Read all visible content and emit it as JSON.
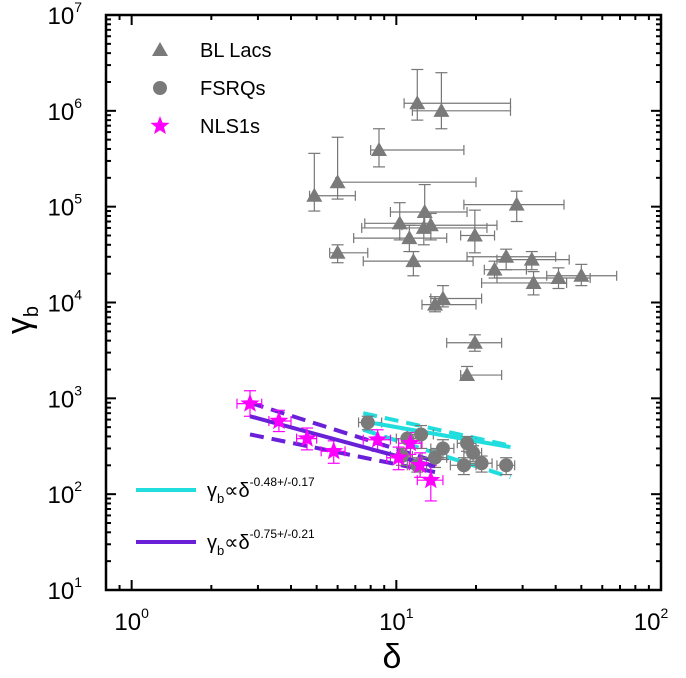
{
  "chart_data": {
    "type": "scatter",
    "title": "",
    "xlabel": "δ",
    "ylabel_main": "γ",
    "ylabel_sub": "b",
    "xscale": "log",
    "yscale": "log",
    "xlim": [
      0.8,
      100
    ],
    "ylim": [
      10,
      10000000
    ],
    "x_ticks": [
      {
        "base": "10",
        "exp": "0",
        "value": 1
      },
      {
        "base": "10",
        "exp": "1",
        "value": 10
      },
      {
        "base": "10",
        "exp": "2",
        "value": 100
      }
    ],
    "y_ticks": [
      {
        "base": "10",
        "exp": "1",
        "value": 10
      },
      {
        "base": "10",
        "exp": "2",
        "value": 100
      },
      {
        "base": "10",
        "exp": "3",
        "value": 1000
      },
      {
        "base": "10",
        "exp": "4",
        "value": 10000
      },
      {
        "base": "10",
        "exp": "5",
        "value": 100000
      },
      {
        "base": "10",
        "exp": "6",
        "value": 1000000
      },
      {
        "base": "10",
        "exp": "7",
        "value": 10000000
      }
    ],
    "legend_position": "top-left",
    "series": [
      {
        "name": "BL Lacs",
        "marker": "triangle",
        "color": "#7a7a7a",
        "points": [
          {
            "x": 12.0,
            "y": 1200000,
            "xlo": 10.7,
            "xhi": 27,
            "ylo": 800000,
            "yhi": 2700000
          },
          {
            "x": 14.8,
            "y": 1000000,
            "xlo": 11.5,
            "xhi": 27,
            "ylo": 650000,
            "yhi": 2500000
          },
          {
            "x": 8.6,
            "y": 390000,
            "xlo": 8.0,
            "xhi": 18,
            "ylo": 260000,
            "yhi": 650000
          },
          {
            "x": 4.9,
            "y": 130000,
            "xlo": 4.7,
            "xhi": 7.0,
            "ylo": 90000,
            "yhi": 360000
          },
          {
            "x": 6.0,
            "y": 180000,
            "xlo": 5.9,
            "xhi": 20,
            "ylo": 120000,
            "yhi": 530000
          },
          {
            "x": 28.5,
            "y": 105000,
            "xlo": 18,
            "xhi": 43,
            "ylo": 70000,
            "yhi": 145000
          },
          {
            "x": 12.8,
            "y": 88000,
            "xlo": 9.5,
            "xhi": 18.5,
            "ylo": 60000,
            "yhi": 170000
          },
          {
            "x": 10.3,
            "y": 67000,
            "xlo": 7.6,
            "xhi": 13.4,
            "ylo": 45000,
            "yhi": 110000
          },
          {
            "x": 13.5,
            "y": 64000,
            "xlo": 10.5,
            "xhi": 24,
            "ylo": 45000,
            "yhi": 85000
          },
          {
            "x": 12.7,
            "y": 60000,
            "xlo": 7.4,
            "xhi": 22,
            "ylo": 40000,
            "yhi": 78000
          },
          {
            "x": 11.2,
            "y": 47000,
            "xlo": 6.9,
            "xhi": 15.5,
            "ylo": 34000,
            "yhi": 64000
          },
          {
            "x": 19.8,
            "y": 50000,
            "xlo": 17.5,
            "xhi": 23.5,
            "ylo": 33000,
            "yhi": 92000
          },
          {
            "x": 6.0,
            "y": 33000,
            "xlo": 5.6,
            "xhi": 7.8,
            "ylo": 26000,
            "yhi": 40000
          },
          {
            "x": 11.6,
            "y": 27000,
            "xlo": 7.5,
            "xhi": 19.5,
            "ylo": 19000,
            "yhi": 34000
          },
          {
            "x": 26.0,
            "y": 30000,
            "xlo": 18.5,
            "xhi": 40,
            "ylo": 22000,
            "yhi": 36000
          },
          {
            "x": 23.5,
            "y": 22000,
            "xlo": 21.5,
            "xhi": 31,
            "ylo": 18000,
            "yhi": 27000
          },
          {
            "x": 32.5,
            "y": 28000,
            "xlo": 24,
            "xhi": 45,
            "ylo": 22000,
            "yhi": 34000
          },
          {
            "x": 33.0,
            "y": 16000,
            "xlo": 21,
            "xhi": 44,
            "ylo": 12000,
            "yhi": 21000
          },
          {
            "x": 41.0,
            "y": 18000,
            "xlo": 24,
            "xhi": 54,
            "ylo": 14000,
            "yhi": 23000
          },
          {
            "x": 50.0,
            "y": 19000,
            "xlo": 37,
            "xhi": 68,
            "ylo": 15000,
            "yhi": 25000
          },
          {
            "x": 15.0,
            "y": 11000,
            "xlo": 13.5,
            "xhi": 21,
            "ylo": 9000,
            "yhi": 15000
          },
          {
            "x": 14.0,
            "y": 9500,
            "xlo": 12.5,
            "xhi": 20,
            "ylo": 8000,
            "yhi": 11500
          },
          {
            "x": 19.8,
            "y": 3800,
            "xlo": 15.5,
            "xhi": 25,
            "ylo": 3100,
            "yhi": 4600
          },
          {
            "x": 18.5,
            "y": 1750,
            "xlo": 17.5,
            "xhi": 25,
            "ylo": 1550,
            "yhi": 2150
          }
        ]
      },
      {
        "name": "FSRQs",
        "marker": "circle",
        "color": "#7a7a7a",
        "points": [
          {
            "x": 7.8,
            "y": 560,
            "xlo": 7.2,
            "xhi": 8.8,
            "ylo": 470,
            "yhi": 650
          },
          {
            "x": 12.4,
            "y": 420,
            "xlo": 11.0,
            "xhi": 13.8,
            "ylo": 300,
            "yhi": 520
          },
          {
            "x": 11.0,
            "y": 380,
            "xlo": 10.0,
            "xhi": 12.2,
            "ylo": 300,
            "yhi": 470
          },
          {
            "x": 18.5,
            "y": 340,
            "xlo": 17.0,
            "xhi": 20.0,
            "ylo": 280,
            "yhi": 400
          },
          {
            "x": 15.0,
            "y": 300,
            "xlo": 13.5,
            "xhi": 16.5,
            "ylo": 230,
            "yhi": 370
          },
          {
            "x": 19.5,
            "y": 270,
            "xlo": 18.0,
            "xhi": 21.0,
            "ylo": 220,
            "yhi": 320
          },
          {
            "x": 14.0,
            "y": 240,
            "xlo": 12.5,
            "xhi": 15.5,
            "ylo": 190,
            "yhi": 290
          },
          {
            "x": 21.0,
            "y": 210,
            "xlo": 19.0,
            "xhi": 23.0,
            "ylo": 170,
            "yhi": 250
          },
          {
            "x": 18.0,
            "y": 200,
            "xlo": 16.0,
            "xhi": 20.0,
            "ylo": 160,
            "yhi": 240
          },
          {
            "x": 26.0,
            "y": 200,
            "xlo": 24.0,
            "xhi": 28.0,
            "ylo": 160,
            "yhi": 240
          },
          {
            "x": 10.5,
            "y": 250,
            "xlo": 9.5,
            "xhi": 11.5,
            "ylo": 200,
            "yhi": 300
          },
          {
            "x": 12.0,
            "y": 200,
            "xlo": 11.0,
            "xhi": 13.0,
            "ylo": 170,
            "yhi": 240
          }
        ]
      },
      {
        "name": "NLS1s",
        "marker": "star",
        "color": "#ff00ff",
        "points": [
          {
            "x": 2.8,
            "y": 880,
            "xlo": 2.5,
            "xhi": 3.1,
            "ylo": 650,
            "yhi": 1200
          },
          {
            "x": 3.6,
            "y": 580,
            "xlo": 3.3,
            "xhi": 4.0,
            "ylo": 450,
            "yhi": 750
          },
          {
            "x": 4.6,
            "y": 380,
            "xlo": 4.2,
            "xhi": 5.0,
            "ylo": 290,
            "yhi": 490
          },
          {
            "x": 5.8,
            "y": 280,
            "xlo": 5.2,
            "xhi": 6.4,
            "ylo": 210,
            "yhi": 360
          },
          {
            "x": 8.5,
            "y": 370,
            "xlo": 7.5,
            "xhi": 9.5,
            "ylo": 280,
            "yhi": 470
          },
          {
            "x": 11.3,
            "y": 340,
            "xlo": 10.2,
            "xhi": 12.5,
            "ylo": 260,
            "yhi": 440
          },
          {
            "x": 10.2,
            "y": 240,
            "xlo": 9.2,
            "xhi": 11.3,
            "ylo": 180,
            "yhi": 310
          },
          {
            "x": 12.3,
            "y": 200,
            "xlo": 11.2,
            "xhi": 13.5,
            "ylo": 150,
            "yhi": 270
          },
          {
            "x": 13.5,
            "y": 140,
            "xlo": 12.0,
            "xhi": 15.0,
            "ylo": 85,
            "yhi": 200
          }
        ]
      }
    ],
    "fits": [
      {
        "label_base": "γ",
        "label_sub": "b",
        "label_mid": "∝δ",
        "label_exp": "-0.48+/-0.17",
        "color": "#22dddd",
        "x_from": 7.5,
        "x_to": 27,
        "y_at_from": 575,
        "y_at_to": 310,
        "band_upper_from": 700,
        "band_upper_to": 320,
        "band_lower_from": 470,
        "band_lower_to": 150
      },
      {
        "label_base": "γ",
        "label_sub": "b",
        "label_mid": "∝δ",
        "label_exp": "-0.75+/-0.21",
        "color": "#6a1fd8",
        "x_from": 2.8,
        "x_to": 14,
        "y_at_from": 650,
        "y_at_to": 195,
        "band_upper_from": 900,
        "band_upper_to": 220,
        "band_lower_from": 420,
        "band_lower_to": 170
      }
    ]
  }
}
